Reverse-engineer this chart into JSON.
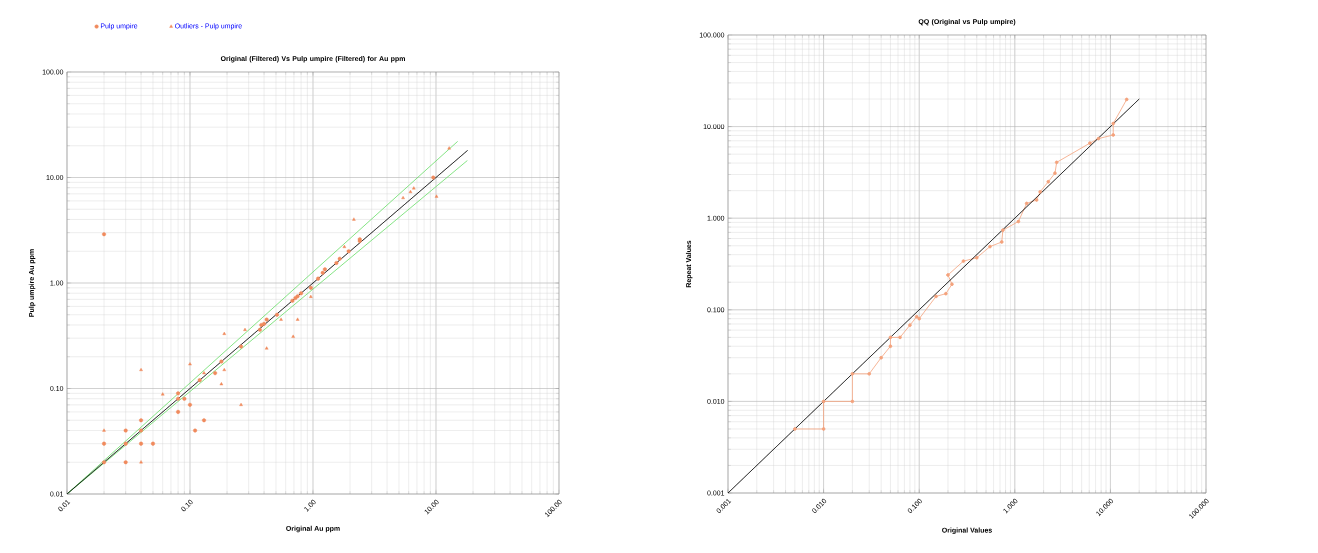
{
  "chart_data": [
    {
      "type": "scatter",
      "title": "Original (Filtered)  Vs Pulp umpire (Filtered)  for Au ppm",
      "xlabel": "Original Au ppm",
      "ylabel": "Pulp umpire Au ppm",
      "log": "xy",
      "grid": true,
      "legend": "top left",
      "xlim": [
        0.01,
        100
      ],
      "ylim": [
        0.01,
        100
      ],
      "xticks": [
        {
          "value": 0.01,
          "label": "0.01"
        },
        {
          "value": 0.1,
          "label": "0.10"
        },
        {
          "value": 1,
          "label": "1.00"
        },
        {
          "value": 10,
          "label": "10.00"
        },
        {
          "value": 100,
          "label": "100.00"
        }
      ],
      "yticks": [
        {
          "value": 0.01,
          "label": "0.01"
        },
        {
          "value": 0.1,
          "label": "0.10"
        },
        {
          "value": 1,
          "label": "1.00"
        },
        {
          "value": 10,
          "label": "10.00"
        },
        {
          "value": 100,
          "label": "100.00"
        }
      ],
      "series": [
        {
          "name": "Pulp umpire",
          "marker": "circle",
          "color": "#f08a5d",
          "x": [
            0.02,
            0.02,
            0.03,
            0.03,
            0.03,
            0.04,
            0.04,
            0.04,
            0.05,
            0.08,
            0.08,
            0.08,
            0.09,
            0.1,
            0.11,
            0.12,
            0.13,
            0.16,
            0.18,
            0.26,
            0.37,
            0.38,
            0.4,
            0.42,
            0.51,
            0.68,
            0.72,
            0.75,
            0.8,
            0.96,
            1.1,
            1.2,
            1.25,
            1.55,
            1.65,
            1.95,
            2.4,
            2.4,
            9.5,
            0.02
          ],
          "values": [
            0.02,
            0.03,
            0.02,
            0.03,
            0.04,
            0.03,
            0.04,
            0.05,
            0.03,
            0.06,
            0.08,
            0.09,
            0.08,
            0.07,
            0.04,
            0.12,
            0.05,
            0.14,
            0.18,
            0.25,
            0.36,
            0.4,
            0.41,
            0.45,
            0.5,
            0.68,
            0.72,
            0.75,
            0.8,
            0.9,
            1.1,
            1.25,
            1.35,
            1.55,
            1.7,
            2.0,
            2.5,
            2.6,
            10.0,
            2.9
          ]
        },
        {
          "name": "Outliers - Pulp umpire",
          "marker": "triangle",
          "color": "#f08a5d",
          "x": [
            0.02,
            0.04,
            0.04,
            0.06,
            0.1,
            0.13,
            0.18,
            0.19,
            0.19,
            0.26,
            0.28,
            0.42,
            0.55,
            0.69,
            0.75,
            0.96,
            1.8,
            2.15,
            5.4,
            6.2,
            6.6,
            10.1,
            12.8
          ],
          "values": [
            0.04,
            0.02,
            0.15,
            0.088,
            0.17,
            0.14,
            0.11,
            0.33,
            0.15,
            0.07,
            0.36,
            0.24,
            0.45,
            0.31,
            0.45,
            0.74,
            2.2,
            4.0,
            6.4,
            7.3,
            7.9,
            6.6,
            18.9
          ]
        },
        {
          "type": "line",
          "marker": "none",
          "line_style": "solid",
          "color": "#66dd66",
          "x": [
            0.01,
            15
          ],
          "values": [
            0.01,
            22
          ]
        },
        {
          "type": "line",
          "marker": "none",
          "line_style": "solid",
          "color": "#66dd66",
          "x": [
            0.01,
            18
          ],
          "values": [
            0.01,
            14.5
          ]
        },
        {
          "type": "line",
          "marker": "none",
          "line_style": "dotted",
          "color": "#000000",
          "x": [
            0.01,
            18
          ],
          "values": [
            0.01,
            18
          ]
        }
      ]
    },
    {
      "type": "line",
      "title": "QQ (Original vs Pulp umpire)",
      "xlabel": "Original Values",
      "ylabel": "Repeat Values",
      "log": "xy",
      "grid": true,
      "xlim": [
        0.001,
        100
      ],
      "ylim": [
        0.001,
        100
      ],
      "xticks": [
        {
          "value": 0.001,
          "label": "0.001"
        },
        {
          "value": 0.01,
          "label": "0.010"
        },
        {
          "value": 0.1,
          "label": "0.100"
        },
        {
          "value": 1,
          "label": "1.000"
        },
        {
          "value": 10,
          "label": "10.000"
        },
        {
          "value": 100,
          "label": "100.000"
        }
      ],
      "yticks": [
        {
          "value": 0.001,
          "label": "0.001"
        },
        {
          "value": 0.01,
          "label": "0.010"
        },
        {
          "value": 0.1,
          "label": "0.100"
        },
        {
          "value": 1,
          "label": "1.000"
        },
        {
          "value": 10,
          "label": "10.000"
        },
        {
          "value": 100,
          "label": "100.000"
        }
      ],
      "series": [
        {
          "marker": "circle",
          "line_style": "solid",
          "color": "#f4a27c",
          "x": [
            0.005,
            0.01,
            0.01,
            0.02,
            0.02,
            0.03,
            0.04,
            0.05,
            0.05,
            0.063,
            0.08,
            0.094,
            0.1,
            0.15,
            0.19,
            0.22,
            0.2,
            0.29,
            0.4,
            0.55,
            0.73,
            0.75,
            1.09,
            1.33,
            1.69,
            1.84,
            2.24,
            2.63,
            2.74,
            6.1,
            7.5,
            10.7,
            10.7,
            14.8
          ],
          "values": [
            0.005,
            0.005,
            0.01,
            0.01,
            0.02,
            0.02,
            0.03,
            0.04,
            0.05,
            0.05,
            0.068,
            0.084,
            0.08,
            0.14,
            0.15,
            0.19,
            0.24,
            0.34,
            0.37,
            0.49,
            0.55,
            0.74,
            0.92,
            1.45,
            1.58,
            1.94,
            2.5,
            3.1,
            4.07,
            6.6,
            7.4,
            8.1,
            10.8,
            19.8
          ]
        },
        {
          "marker": "none",
          "line_style": "dotted",
          "color": "#000000",
          "x": [
            0.001,
            20
          ],
          "values": [
            0.001,
            20
          ]
        }
      ]
    }
  ]
}
